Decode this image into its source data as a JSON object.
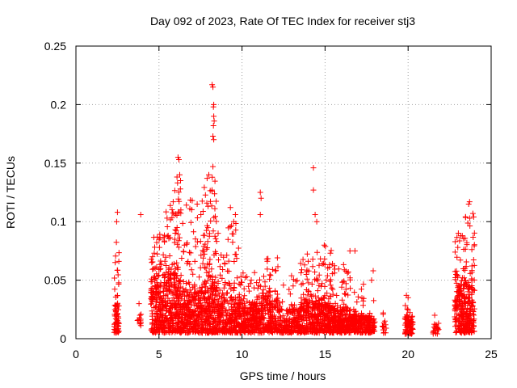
{
  "chart_data": {
    "type": "scatter",
    "title": "Day 092 of 2023, Rate Of TEC Index for receiver stj3",
    "xlabel": "GPS time / hours",
    "ylabel": "ROTI / TECUs",
    "xlim": [
      0,
      25
    ],
    "ylim": [
      0,
      0.25
    ],
    "x_ticks": [
      0,
      5,
      10,
      15,
      20,
      25
    ],
    "x_tick_labels": [
      "0",
      "5",
      "10",
      "15",
      "20",
      "25"
    ],
    "y_ticks": [
      0,
      0.05,
      0.1,
      0.15,
      0.2,
      0.25
    ],
    "y_tick_labels": [
      "0",
      "0.05",
      "0.1",
      "0.15",
      "0.2",
      "0.25"
    ],
    "grid": true,
    "marker": "+",
    "color": "#ff0000",
    "seed": 92,
    "series": [
      {
        "name": "ROTI",
        "clusters": [
          {
            "x_range": [
              2.3,
              2.6
            ],
            "count": 70,
            "y_base": [
              0.005,
              0.03
            ],
            "y_tail": [
              0.03,
              0.085
            ],
            "tail_frac": 0.25
          },
          {
            "x_range": [
              3.7,
              4.0
            ],
            "count": 10,
            "y_base": [
              0.01,
              0.02
            ],
            "y_tail": [
              0.02,
              0.03
            ],
            "tail_frac": 0.1
          },
          {
            "x_range": [
              4.5,
              5.4
            ],
            "count": 240,
            "y_base": [
              0.005,
              0.045
            ],
            "y_tail": [
              0.045,
              0.09
            ],
            "tail_frac": 0.2
          },
          {
            "x_range": [
              5.4,
              6.3
            ],
            "count": 260,
            "y_base": [
              0.005,
              0.055
            ],
            "y_tail": [
              0.055,
              0.14
            ],
            "tail_frac": 0.2
          },
          {
            "x_range": [
              6.3,
              7.6
            ],
            "count": 300,
            "y_base": [
              0.005,
              0.04
            ],
            "y_tail": [
              0.04,
              0.12
            ],
            "tail_frac": 0.2
          },
          {
            "x_range": [
              7.6,
              8.5
            ],
            "count": 250,
            "y_base": [
              0.005,
              0.045
            ],
            "y_tail": [
              0.045,
              0.14
            ],
            "tail_frac": 0.25
          },
          {
            "x_range": [
              8.5,
              9.9
            ],
            "count": 280,
            "y_base": [
              0.005,
              0.035
            ],
            "y_tail": [
              0.035,
              0.1
            ],
            "tail_frac": 0.2
          },
          {
            "x_range": [
              9.9,
              11.0
            ],
            "count": 230,
            "y_base": [
              0.005,
              0.03
            ],
            "y_tail": [
              0.03,
              0.06
            ],
            "tail_frac": 0.15
          },
          {
            "x_range": [
              11.0,
              12.3
            ],
            "count": 240,
            "y_base": [
              0.005,
              0.035
            ],
            "y_tail": [
              0.035,
              0.07
            ],
            "tail_frac": 0.15
          },
          {
            "x_range": [
              12.3,
              13.5
            ],
            "count": 160,
            "y_base": [
              0.005,
              0.025
            ],
            "y_tail": [
              0.025,
              0.055
            ],
            "tail_frac": 0.1
          },
          {
            "x_range": [
              13.5,
              14.5
            ],
            "count": 220,
            "y_base": [
              0.005,
              0.03
            ],
            "y_tail": [
              0.03,
              0.075
            ],
            "tail_frac": 0.2
          },
          {
            "x_range": [
              14.5,
              15.5
            ],
            "count": 230,
            "y_base": [
              0.005,
              0.03
            ],
            "y_tail": [
              0.03,
              0.08
            ],
            "tail_frac": 0.2
          },
          {
            "x_range": [
              15.5,
              16.8
            ],
            "count": 260,
            "y_base": [
              0.005,
              0.025
            ],
            "y_tail": [
              0.025,
              0.065
            ],
            "tail_frac": 0.15
          },
          {
            "x_range": [
              16.8,
              18.0
            ],
            "count": 180,
            "y_base": [
              0.005,
              0.02
            ],
            "y_tail": [
              0.02,
              0.05
            ],
            "tail_frac": 0.1
          },
          {
            "x_range": [
              18.4,
              18.7
            ],
            "count": 12,
            "y_base": [
              0.004,
              0.015
            ],
            "y_tail": [
              0.015,
              0.025
            ],
            "tail_frac": 0.1
          },
          {
            "x_range": [
              19.8,
              20.3
            ],
            "count": 80,
            "y_base": [
              0.004,
              0.02
            ],
            "y_tail": [
              0.02,
              0.035
            ],
            "tail_frac": 0.1
          },
          {
            "x_range": [
              21.5,
              21.9
            ],
            "count": 20,
            "y_base": [
              0.004,
              0.01
            ],
            "y_tail": [
              0.01,
              0.02
            ],
            "tail_frac": 0.1
          },
          {
            "x_range": [
              22.8,
              24.0
            ],
            "count": 320,
            "y_base": [
              0.005,
              0.045
            ],
            "y_tail": [
              0.045,
              0.105
            ],
            "tail_frac": 0.2
          }
        ],
        "extra_points": [
          [
            8.2,
            0.217
          ],
          [
            8.25,
            0.215
          ],
          [
            8.3,
            0.2
          ],
          [
            8.28,
            0.198
          ],
          [
            8.3,
            0.19
          ],
          [
            8.32,
            0.186
          ],
          [
            8.28,
            0.182
          ],
          [
            8.25,
            0.173
          ],
          [
            8.3,
            0.17
          ],
          [
            8.25,
            0.147
          ],
          [
            6.15,
            0.155
          ],
          [
            6.2,
            0.153
          ],
          [
            14.3,
            0.146
          ],
          [
            14.3,
            0.127
          ],
          [
            11.1,
            0.125
          ],
          [
            11.15,
            0.12
          ],
          [
            11.1,
            0.106
          ],
          [
            2.5,
            0.108
          ],
          [
            2.45,
            0.1
          ],
          [
            3.9,
            0.106
          ],
          [
            23.7,
            0.117
          ],
          [
            23.65,
            0.115
          ],
          [
            23.9,
            0.107
          ],
          [
            23.95,
            0.104
          ],
          [
            9.3,
            0.112
          ],
          [
            9.6,
            0.106
          ],
          [
            9.5,
            0.1
          ],
          [
            7.0,
            0.118
          ],
          [
            7.3,
            0.115
          ],
          [
            14.4,
            0.106
          ],
          [
            14.5,
            0.1
          ],
          [
            16.8,
            0.075
          ],
          [
            16.5,
            0.075
          ],
          [
            17.9,
            0.058
          ],
          [
            17.8,
            0.05
          ],
          [
            19.9,
            0.037
          ],
          [
            20.0,
            0.035
          ],
          [
            21.6,
            0.02
          ],
          [
            18.5,
            0.022
          ],
          [
            18.6,
            0.015
          ],
          [
            3.8,
            0.03
          ],
          [
            3.85,
            0.02
          ],
          [
            6.25,
            0.14
          ],
          [
            6.3,
            0.135
          ],
          [
            8.0,
            0.14
          ],
          [
            7.9,
            0.137
          ]
        ]
      }
    ]
  }
}
